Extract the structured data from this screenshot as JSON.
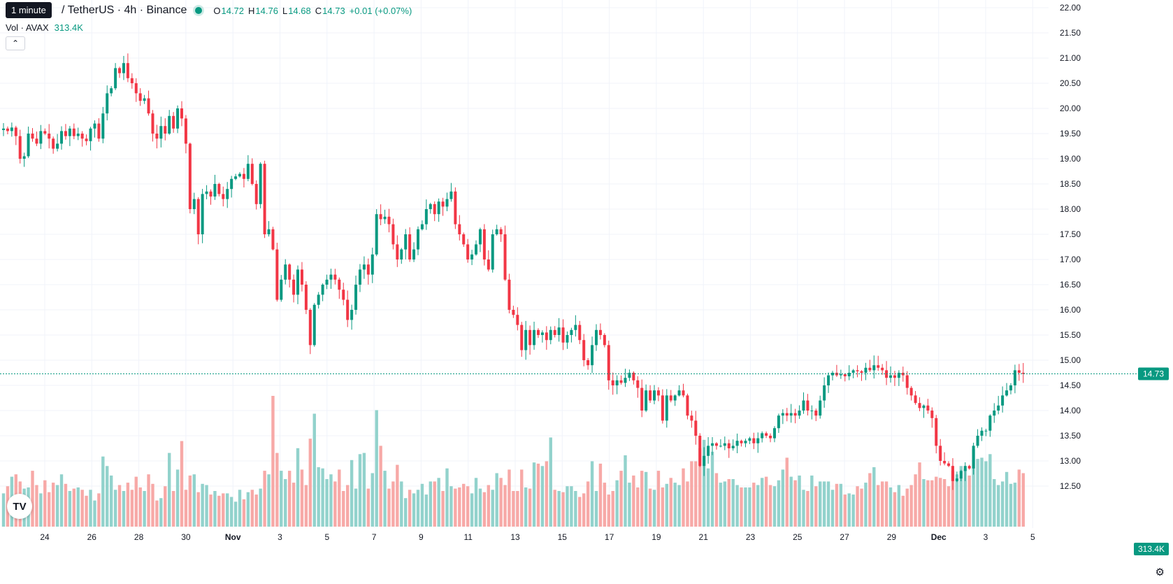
{
  "legend": {
    "tooltip": "1 minute",
    "symbol": "/ TetherUS · 4h · Binance",
    "open_label": "O",
    "open": "14.72",
    "high_label": "H",
    "high": "14.76",
    "low_label": "L",
    "low": "14.68",
    "close_label": "C",
    "close": "14.73",
    "change": "+0.01 (+0.07%)",
    "vol_label": "Vol · AVAX",
    "vol_value": "313.4K"
  },
  "logo_text": "TV",
  "icons": {
    "collapse": "chevron-up-icon",
    "settings": "gear-icon",
    "logo": "tradingview-logo"
  },
  "colors": {
    "up": "#089981",
    "down": "#f23645",
    "up_vol": "#92d2cc",
    "down_vol": "#f7a9a7",
    "grid": "#f0f3fa"
  },
  "chart_data": {
    "type": "candlestick",
    "symbol": "AVAX/USDT",
    "interval": "4h",
    "exchange": "Binance",
    "ylim": [
      12.2,
      22.1
    ],
    "y_ticks": [
      "22.00",
      "21.50",
      "21.00",
      "20.50",
      "20.00",
      "19.50",
      "19.00",
      "18.50",
      "18.00",
      "17.50",
      "17.00",
      "16.50",
      "16.00",
      "15.50",
      "15.00",
      "14.50",
      "14.00",
      "13.50",
      "13.00",
      "12.50"
    ],
    "x_ticks": [
      "24",
      "26",
      "28",
      "30",
      "Nov",
      "3",
      "5",
      "7",
      "9",
      "11",
      "13",
      "15",
      "17",
      "19",
      "21",
      "23",
      "25",
      "27",
      "29",
      "Dec",
      "3",
      "5"
    ],
    "x_tick_bold": [
      "Nov",
      "Dec"
    ],
    "last_price": "14.73",
    "last_volume": "313.4K",
    "grid": true,
    "closes": [
      19.6,
      19.55,
      19.62,
      19.45,
      19.0,
      19.05,
      19.5,
      19.4,
      19.3,
      19.55,
      19.5,
      19.4,
      19.2,
      19.3,
      19.55,
      19.45,
      19.6,
      19.45,
      19.5,
      19.4,
      19.35,
      19.6,
      19.7,
      19.4,
      19.9,
      20.3,
      20.4,
      20.8,
      20.7,
      20.9,
      20.6,
      20.5,
      20.3,
      20.15,
      20.2,
      19.9,
      19.5,
      19.4,
      19.65,
      19.5,
      19.85,
      19.6,
      20.0,
      19.8,
      19.3,
      18.0,
      18.2,
      17.5,
      18.3,
      18.35,
      18.25,
      18.5,
      18.3,
      18.2,
      18.4,
      18.6,
      18.65,
      18.7,
      18.6,
      18.9,
      18.5,
      18.1,
      18.9,
      17.5,
      17.6,
      17.2,
      16.2,
      16.6,
      16.9,
      16.6,
      16.3,
      16.8,
      16.5,
      16.0,
      15.3,
      16.1,
      16.3,
      16.5,
      16.6,
      16.7,
      16.6,
      16.4,
      16.2,
      15.8,
      16.0,
      16.5,
      16.8,
      16.9,
      16.7,
      17.1,
      17.9,
      17.8,
      17.85,
      17.7,
      17.3,
      17.0,
      17.2,
      17.5,
      17.0,
      17.2,
      17.6,
      17.7,
      18.0,
      18.1,
      17.9,
      18.15,
      18.05,
      18.2,
      18.35,
      17.7,
      17.5,
      17.3,
      17.0,
      17.1,
      17.3,
      17.6,
      17.0,
      16.8,
      17.5,
      17.6,
      17.5,
      16.6,
      16.0,
      15.9,
      15.7,
      15.2,
      15.6,
      15.3,
      15.6,
      15.5,
      15.55,
      15.4,
      15.6,
      15.5,
      15.65,
      15.35,
      15.5,
      15.6,
      15.7,
      15.4,
      15.0,
      14.9,
      15.3,
      15.6,
      15.5,
      15.3,
      14.6,
      14.5,
      14.6,
      14.55,
      14.65,
      14.75,
      14.6,
      14.45,
      14.0,
      14.4,
      14.2,
      14.4,
      14.3,
      13.8,
      14.3,
      14.2,
      14.3,
      14.4,
      14.3,
      13.9,
      13.8,
      13.5,
      12.9,
      13.1,
      13.3,
      13.35,
      13.3,
      13.3,
      13.35,
      13.25,
      13.3,
      13.4,
      13.35,
      13.4,
      13.45,
      13.35,
      13.45,
      13.55,
      13.5,
      13.45,
      13.65,
      13.9,
      13.95,
      13.9,
      13.95,
      13.9,
      14.0,
      14.2,
      14.0,
      14.0,
      13.9,
      14.2,
      14.5,
      14.7,
      14.75,
      14.7,
      14.72,
      14.68,
      14.75,
      14.8,
      14.78,
      14.75,
      14.85,
      14.8,
      14.9,
      14.85,
      14.8,
      14.65,
      14.7,
      14.65,
      14.75,
      14.7,
      14.45,
      14.3,
      14.15,
      14.05,
      14.1,
      14.0,
      13.85,
      13.3,
      13.0,
      12.95,
      12.9,
      12.6,
      12.65,
      12.8,
      12.9,
      12.85,
      13.3,
      13.5,
      13.6,
      13.6,
      13.9,
      14.0,
      14.1,
      14.3,
      14.4,
      14.5,
      14.8,
      14.75,
      14.73
    ],
    "volumes": [
      0.28,
      0.34,
      0.42,
      0.44,
      0.38,
      0.32,
      0.33,
      0.47,
      0.35,
      0.28,
      0.39,
      0.29,
      0.37,
      0.35,
      0.44,
      0.36,
      0.3,
      0.32,
      0.33,
      0.31,
      0.26,
      0.31,
      0.22,
      0.28,
      0.59,
      0.51,
      0.43,
      0.31,
      0.35,
      0.3,
      0.37,
      0.31,
      0.42,
      0.33,
      0.3,
      0.44,
      0.36,
      0.22,
      0.24,
      0.34,
      0.62,
      0.3,
      0.48,
      0.72,
      0.31,
      0.43,
      0.44,
      0.29,
      0.36,
      0.35,
      0.27,
      0.3,
      0.26,
      0.28,
      0.28,
      0.25,
      0.21,
      0.31,
      0.23,
      0.29,
      0.31,
      0.27,
      0.32,
      0.47,
      0.44,
      1.1,
      0.62,
      0.47,
      0.4,
      0.47,
      0.37,
      0.66,
      0.48,
      0.35,
      0.74,
      0.95,
      0.5,
      0.49,
      0.4,
      0.44,
      0.38,
      0.48,
      0.3,
      0.35,
      0.56,
      0.32,
      0.61,
      0.62,
      0.32,
      0.45,
      0.98,
      0.68,
      0.47,
      0.32,
      0.38,
      0.52,
      0.38,
      0.24,
      0.31,
      0.28,
      0.31,
      0.36,
      0.27,
      0.38,
      0.38,
      0.41,
      0.3,
      0.49,
      0.34,
      0.32,
      0.33,
      0.36,
      0.34,
      0.28,
      0.41,
      0.32,
      0.29,
      0.35,
      0.31,
      0.45,
      0.41,
      0.35,
      0.48,
      0.3,
      0.3,
      0.48,
      0.33,
      0.32,
      0.54,
      0.53,
      0.51,
      0.55,
      0.75,
      0.31,
      0.3,
      0.29,
      0.34,
      0.34,
      0.3,
      0.25,
      0.28,
      0.38,
      0.55,
      0.3,
      0.53,
      0.37,
      0.27,
      0.3,
      0.39,
      0.47,
      0.6,
      0.37,
      0.43,
      0.33,
      0.47,
      0.46,
      0.32,
      0.31,
      0.47,
      0.33,
      0.36,
      0.41,
      0.37,
      0.35,
      0.49,
      0.38,
      0.55,
      0.55,
      0.66,
      0.73,
      0.49,
      0.63,
      0.45,
      0.37,
      0.38,
      0.4,
      0.4,
      0.35,
      0.33,
      0.33,
      0.33,
      0.37,
      0.35,
      0.41,
      0.42,
      0.35,
      0.34,
      0.39,
      0.48,
      0.58,
      0.42,
      0.39,
      0.43,
      0.31,
      0.3,
      0.43,
      0.34,
      0.38,
      0.38,
      0.38,
      0.31,
      0.36,
      0.36,
      0.27,
      0.28,
      0.27,
      0.34,
      0.32,
      0.37,
      0.45,
      0.5,
      0.35,
      0.38,
      0.38,
      0.33,
      0.29,
      0.35,
      0.26,
      0.32,
      0.35,
      0.44,
      0.54,
      0.4,
      0.39,
      0.39,
      0.42,
      0.41,
      0.4,
      0.34,
      0.47,
      0.44,
      0.51,
      0.49,
      0.43,
      0.65,
      0.57,
      0.58,
      0.55,
      0.61,
      0.4,
      0.35,
      0.38,
      0.46,
      0.36,
      0.37,
      0.48,
      0.45,
      0.55,
      0.6,
      0.3
    ]
  }
}
